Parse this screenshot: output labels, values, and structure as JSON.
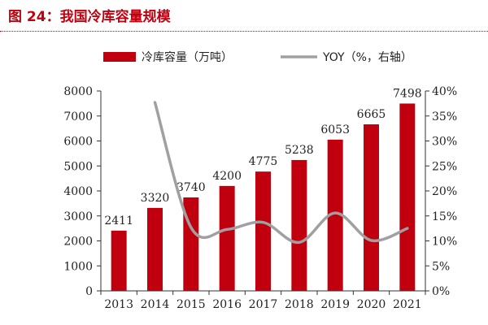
{
  "header": {
    "title": "图 24：我国冷库容量规模"
  },
  "colors": {
    "bar": "#c0000f",
    "line": "#a0a0a0",
    "title": "#c0000f",
    "axis": "#333333"
  },
  "chart_data": {
    "type": "bar",
    "categories": [
      "2013",
      "2014",
      "2015",
      "2016",
      "2017",
      "2018",
      "2019",
      "2020",
      "2021"
    ],
    "series": [
      {
        "name": "冷库容量（万吨）",
        "type": "bar",
        "axis": "left",
        "values": [
          2411,
          3320,
          3740,
          4200,
          4775,
          5238,
          6053,
          6665,
          7498
        ]
      },
      {
        "name": "YOY（%，右轴）",
        "type": "line",
        "axis": "right",
        "values": [
          null,
          37.7,
          12.7,
          12.3,
          13.7,
          9.7,
          15.6,
          10.1,
          12.5
        ]
      }
    ],
    "y_left": {
      "ylim": [
        0,
        8000
      ],
      "ticks": [
        "0",
        "1000",
        "2000",
        "3000",
        "4000",
        "5000",
        "6000",
        "7000",
        "8000"
      ]
    },
    "y_right": {
      "ylim": [
        0,
        40
      ],
      "ticks": [
        "0%",
        "5%",
        "10%",
        "15%",
        "20%",
        "25%",
        "30%",
        "35%",
        "40%"
      ]
    },
    "grid": false,
    "legend_placement": "top"
  }
}
